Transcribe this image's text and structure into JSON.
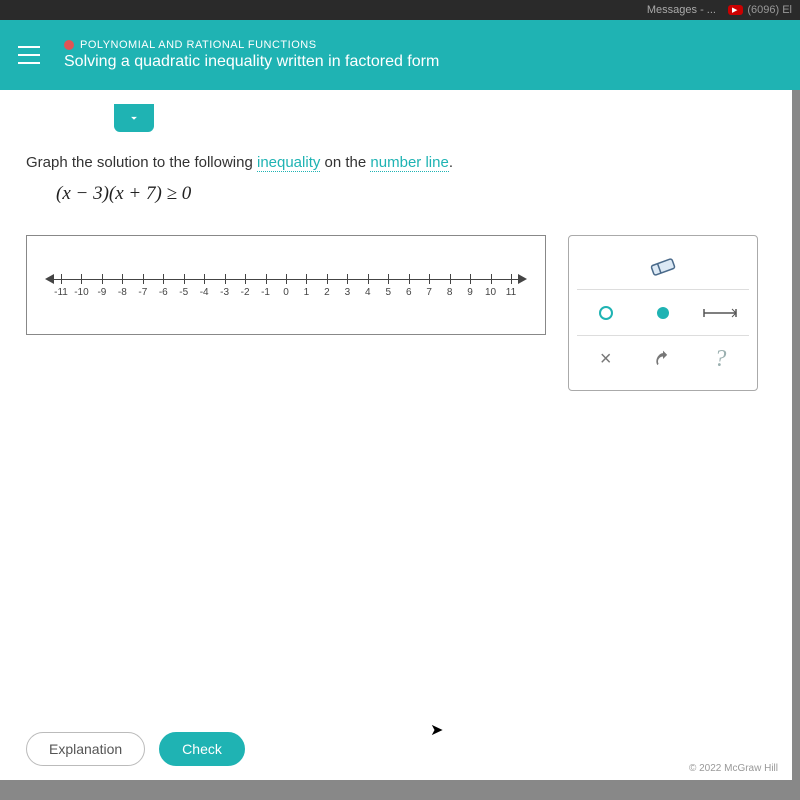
{
  "topbar": {
    "tab1": "Messages - ...",
    "tab2": "(6096) El"
  },
  "header": {
    "category": "POLYNOMIAL AND RATIONAL FUNCTIONS",
    "title": "Solving a quadratic inequality written in factored form"
  },
  "instruction": {
    "pre": "Graph the solution to the following ",
    "link1": "inequality",
    "mid": " on the ",
    "link2": "number line",
    "post": "."
  },
  "formula": "(x − 3)(x + 7) ≥ 0",
  "numberline": {
    "ticks": [
      "-11",
      "-10",
      "-9",
      "-8",
      "-7",
      "-6",
      "-5",
      "-4",
      "-3",
      "-2",
      "-1",
      "0",
      "1",
      "2",
      "3",
      "4",
      "5",
      "6",
      "7",
      "8",
      "9",
      "10",
      "11"
    ]
  },
  "tools": {
    "open_circle_color": "#1fb3b3",
    "closed_circle_color": "#1fb3b3",
    "eraser_body": "#dce9f5",
    "eraser_outline": "#4a6a8a",
    "x_label": "×",
    "undo_color": "#777",
    "help_label": "?",
    "help_color": "#9bb0b0"
  },
  "footer": {
    "explanation": "Explanation",
    "check": "Check",
    "copyright": "© 2022 McGraw Hill"
  },
  "colors": {
    "header_bg": "#1fb3b3",
    "accent": "#1fb3b3"
  }
}
